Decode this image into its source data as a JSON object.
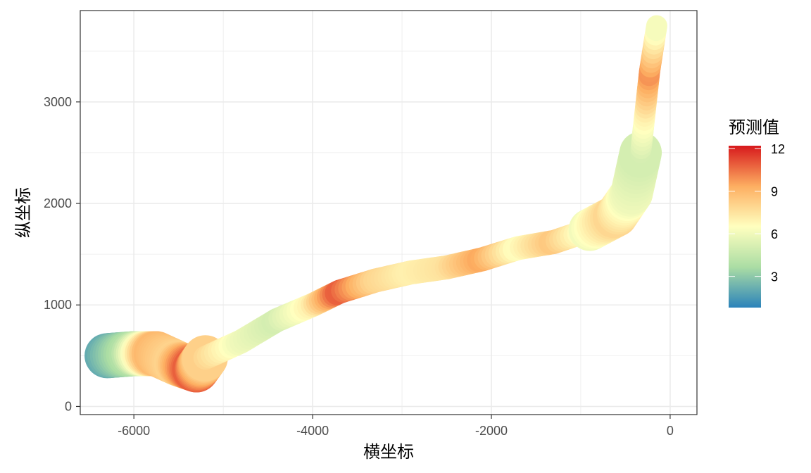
{
  "chart_data": {
    "type": "heatmap",
    "xlabel": "横坐标",
    "ylabel": "纵坐标",
    "xlim": [
      -6600,
      300
    ],
    "ylim": [
      -80,
      3900
    ],
    "x_ticks": [
      -6000,
      -4000,
      -2000,
      0
    ],
    "x_tick_labels": [
      "-6000",
      "-4000",
      "-2000",
      "0"
    ],
    "y_ticks": [
      0,
      1000,
      2000,
      3000
    ],
    "y_tick_labels": [
      "0",
      "1000",
      "2000",
      "3000"
    ],
    "grid": true,
    "legend": {
      "title": "预测值",
      "placement": "right",
      "range": [
        0.8,
        12.2
      ],
      "ticks": [
        3,
        6,
        9,
        12
      ],
      "tick_labels": [
        "3",
        "6",
        "9",
        "12"
      ],
      "palette": [
        "#2b83ba",
        "#abdda4",
        "#ffffbf",
        "#fdae61",
        "#d7191c"
      ]
    },
    "path": [
      [
        -6300,
        500
      ],
      [
        -6000,
        520
      ],
      [
        -5750,
        520
      ],
      [
        -5500,
        420
      ],
      [
        -5300,
        360
      ],
      [
        -5200,
        480
      ],
      [
        -4800,
        640
      ],
      [
        -4400,
        850
      ],
      [
        -4000,
        1000
      ],
      [
        -3700,
        1130
      ],
      [
        -3300,
        1240
      ],
      [
        -2900,
        1320
      ],
      [
        -2500,
        1370
      ],
      [
        -2100,
        1450
      ],
      [
        -1700,
        1560
      ],
      [
        -1300,
        1620
      ],
      [
        -900,
        1740
      ],
      [
        -600,
        1880
      ],
      [
        -430,
        2100
      ],
      [
        -330,
        2500
      ],
      [
        -280,
        2900
      ],
      [
        -230,
        3300
      ],
      [
        -150,
        3750
      ]
    ],
    "values": [
      2,
      4,
      9,
      8,
      11,
      8,
      6,
      5,
      7,
      11,
      8,
      7,
      7.5,
      9.5,
      6.5,
      8.5,
      6,
      8,
      6,
      5,
      7,
      10,
      6
    ]
  }
}
